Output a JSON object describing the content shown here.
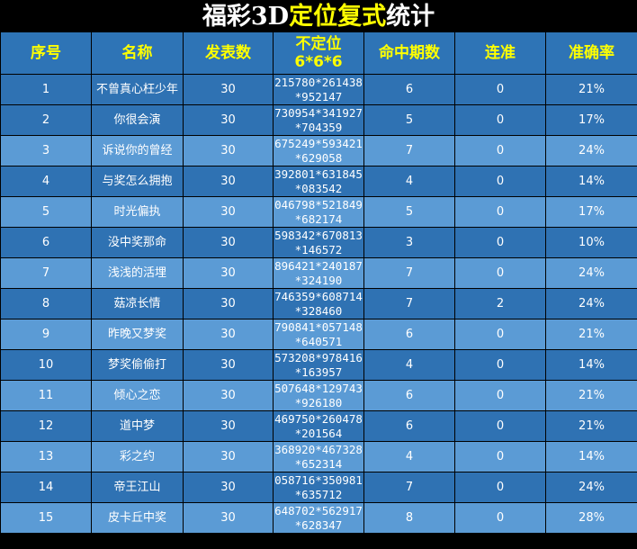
{
  "title": {
    "part1": "福彩3D",
    "part2": "定位复式",
    "part3": "统计"
  },
  "colors": {
    "header_bg": "#2e74b6",
    "header_text": "#ffff00",
    "row_dark": "#2f72b3",
    "row_light": "#5b9bd5",
    "title_accent": "#ffff00"
  },
  "headers": [
    "序号",
    "名称",
    "发表数",
    "不定位",
    "命中期数",
    "连准",
    "准确率"
  ],
  "header_sub": "6*6*6",
  "rows": [
    {
      "no": "1",
      "name": "不曾真心枉少年",
      "count": "30",
      "numbers": "215780*261438*952147",
      "hits": "6",
      "streak": "0",
      "rate": "21%",
      "shade": "dark"
    },
    {
      "no": "2",
      "name": "你很会演",
      "count": "30",
      "numbers": "730954*341927*704359",
      "hits": "5",
      "streak": "0",
      "rate": "17%",
      "shade": "dark"
    },
    {
      "no": "3",
      "name": "诉说你的曾经",
      "count": "30",
      "numbers": "675249*593421*629058",
      "hits": "7",
      "streak": "0",
      "rate": "24%",
      "shade": "light"
    },
    {
      "no": "4",
      "name": "与奖怎么拥抱",
      "count": "30",
      "numbers": "392801*631845*083542",
      "hits": "4",
      "streak": "0",
      "rate": "14%",
      "shade": "dark"
    },
    {
      "no": "5",
      "name": "时光偏执",
      "count": "30",
      "numbers": "046798*521849*682174",
      "hits": "5",
      "streak": "0",
      "rate": "17%",
      "shade": "light"
    },
    {
      "no": "6",
      "name": "没中奖那命",
      "count": "30",
      "numbers": "598342*670813*146572",
      "hits": "3",
      "streak": "0",
      "rate": "10%",
      "shade": "dark"
    },
    {
      "no": "7",
      "name": "浅浅的活埋",
      "count": "30",
      "numbers": "896421*240187*324190",
      "hits": "7",
      "streak": "0",
      "rate": "24%",
      "shade": "light"
    },
    {
      "no": "8",
      "name": "菇凉长情",
      "count": "30",
      "numbers": "746359*608714*328460",
      "hits": "7",
      "streak": "2",
      "rate": "24%",
      "shade": "dark"
    },
    {
      "no": "9",
      "name": "昨晚又梦奖",
      "count": "30",
      "numbers": "790841*057148*640571",
      "hits": "6",
      "streak": "0",
      "rate": "21%",
      "shade": "light"
    },
    {
      "no": "10",
      "name": "梦奖偷偷打",
      "count": "30",
      "numbers": "573208*978416*163957",
      "hits": "4",
      "streak": "0",
      "rate": "14%",
      "shade": "dark"
    },
    {
      "no": "11",
      "name": "倾心之恋",
      "count": "30",
      "numbers": "507648*129743*926180",
      "hits": "6",
      "streak": "0",
      "rate": "21%",
      "shade": "light"
    },
    {
      "no": "12",
      "name": "道中梦",
      "count": "30",
      "numbers": "469750*260478*201564",
      "hits": "6",
      "streak": "0",
      "rate": "21%",
      "shade": "dark"
    },
    {
      "no": "13",
      "name": "彩之约",
      "count": "30",
      "numbers": "368920*467328*652314",
      "hits": "4",
      "streak": "0",
      "rate": "14%",
      "shade": "light"
    },
    {
      "no": "14",
      "name": "帝王江山",
      "count": "30",
      "numbers": "058716*350981*635712",
      "hits": "7",
      "streak": "0",
      "rate": "24%",
      "shade": "dark"
    },
    {
      "no": "15",
      "name": "皮卡丘中奖",
      "count": "30",
      "numbers": "648702*562917*628347",
      "hits": "8",
      "streak": "0",
      "rate": "28%",
      "shade": "light"
    }
  ]
}
